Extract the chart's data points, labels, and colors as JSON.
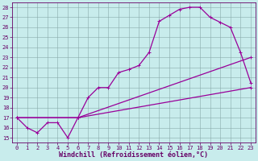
{
  "xlabel": "Windchill (Refroidissement éolien,°C)",
  "bg_color": "#c8ecec",
  "line_color": "#990099",
  "xlim": [
    -0.5,
    23.5
  ],
  "ylim": [
    14.5,
    28.5
  ],
  "xticks": [
    0,
    1,
    2,
    3,
    4,
    5,
    6,
    7,
    8,
    9,
    10,
    11,
    12,
    13,
    14,
    15,
    16,
    17,
    18,
    19,
    20,
    21,
    22,
    23
  ],
  "yticks": [
    15,
    16,
    17,
    18,
    19,
    20,
    21,
    22,
    23,
    24,
    25,
    26,
    27,
    28
  ],
  "line1_x": [
    0,
    1,
    2,
    3,
    4,
    5,
    6,
    7,
    8,
    9,
    10,
    11,
    12,
    13,
    14,
    15,
    16,
    17,
    18,
    19,
    20,
    21,
    22,
    23
  ],
  "line1_y": [
    17.0,
    16.0,
    15.5,
    16.5,
    16.5,
    15.0,
    17.0,
    19.0,
    20.0,
    20.0,
    21.5,
    21.8,
    22.2,
    23.5,
    26.6,
    27.2,
    27.8,
    28.0,
    28.0,
    27.0,
    26.5,
    26.0,
    23.5,
    20.5
  ],
  "line2_x": [
    0,
    6,
    23
  ],
  "line2_y": [
    17.0,
    17.0,
    23.0
  ],
  "line3_x": [
    0,
    6,
    23
  ],
  "line3_y": [
    17.0,
    17.0,
    20.0
  ],
  "marker": "+",
  "markersize": 3,
  "linewidth": 0.9,
  "tick_fontsize": 5.0,
  "label_fontsize": 6.0
}
